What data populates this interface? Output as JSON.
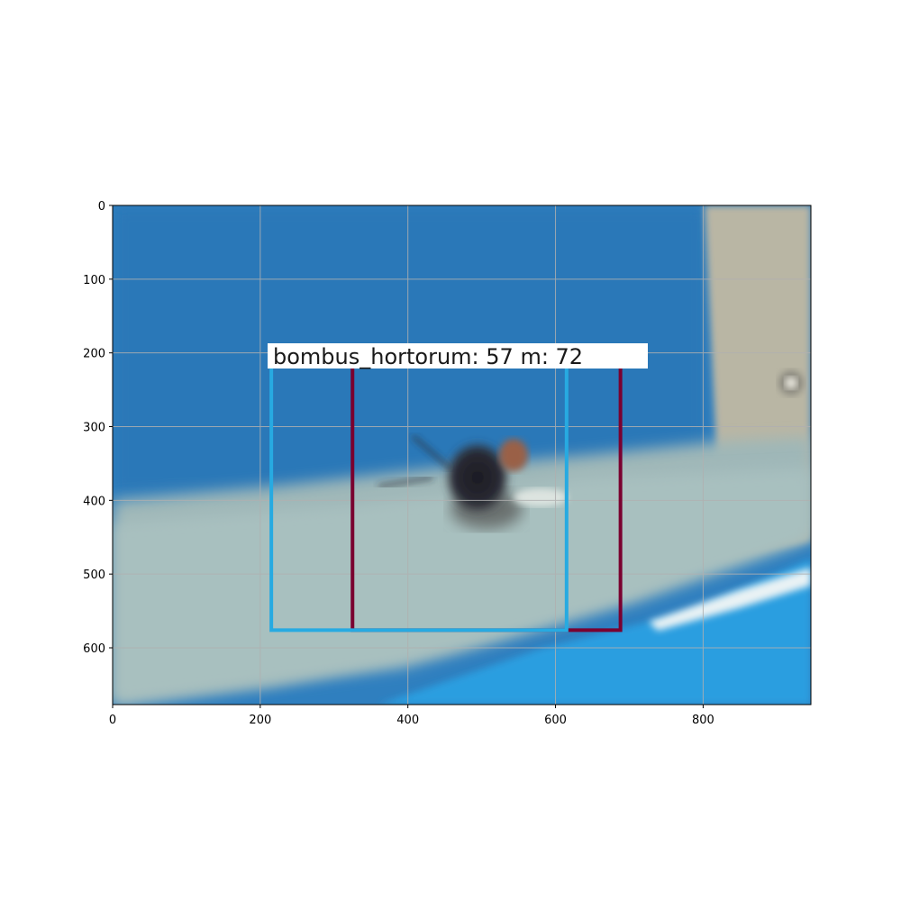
{
  "image": {
    "description_colors": {
      "pool_blue": "#2f7fbf",
      "floor_grey": "#9fb7b8",
      "wall_beige": "#b9b6a4",
      "bright_blue": "#2a9ee0"
    },
    "axes": {
      "x_range": [
        0,
        946
      ],
      "y_range": [
        0,
        677
      ],
      "y_inverted": true,
      "grid": true,
      "x_ticks": [
        "0",
        "200",
        "400",
        "600",
        "800"
      ],
      "y_ticks": [
        "0",
        "100",
        "200",
        "300",
        "400",
        "500",
        "600"
      ]
    },
    "detections": [
      {
        "text": "bombus_hortorum: 57",
        "color": "#27aae1",
        "box": {
          "x0": 215,
          "y0": 214,
          "x1": 615,
          "y1": 576
        }
      },
      {
        "text": "m: 72",
        "color": "#7a0030",
        "box": {
          "x0": 325,
          "y0": 214,
          "x1": 688,
          "y1": 576
        }
      }
    ],
    "overlay_label": {
      "text": "bombus_hortorum: 57  m: 72"
    }
  }
}
